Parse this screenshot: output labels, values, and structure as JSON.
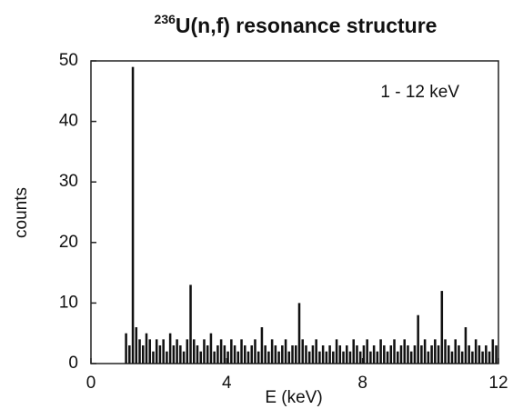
{
  "chart_data": {
    "type": "histogram",
    "title_superscript": "236",
    "title": "U(n,f)   resonance   structure",
    "annotation": "1 - 12 keV",
    "xlabel": "E (keV)",
    "ylabel": "counts",
    "color": "#111111",
    "xlim": [
      0,
      12
    ],
    "xticks": [
      0,
      4,
      8,
      12
    ],
    "ylim": [
      0,
      50
    ],
    "yticks": [
      0,
      10,
      20,
      30,
      40,
      50
    ],
    "bins": [
      1,
      1.1,
      1.2,
      1.3,
      1.4,
      1.5,
      1.6,
      1.7,
      1.8,
      1.9,
      2,
      2.1,
      2.2,
      2.3,
      2.4,
      2.5,
      2.6,
      2.7,
      2.8,
      2.9,
      3,
      3.1,
      3.2,
      3.3,
      3.4,
      3.5,
      3.6,
      3.7,
      3.8,
      3.9,
      4,
      4.1,
      4.2,
      4.3,
      4.4,
      4.5,
      4.6,
      4.7,
      4.8,
      4.9,
      5,
      5.1,
      5.2,
      5.3,
      5.4,
      5.5,
      5.6,
      5.7,
      5.8,
      5.9,
      6,
      6.1,
      6.2,
      6.3,
      6.4,
      6.5,
      6.6,
      6.7,
      6.8,
      6.9,
      7,
      7.1,
      7.2,
      7.3,
      7.4,
      7.5,
      7.6,
      7.7,
      7.8,
      7.9,
      8,
      8.1,
      8.2,
      8.3,
      8.4,
      8.5,
      8.6,
      8.7,
      8.8,
      8.9,
      9,
      9.1,
      9.2,
      9.3,
      9.4,
      9.5,
      9.6,
      9.7,
      9.8,
      9.9,
      10,
      10.1,
      10.2,
      10.3,
      10.4,
      10.5,
      10.6,
      10.7,
      10.8,
      10.9,
      11,
      11.1,
      11.2,
      11.3,
      11.4,
      11.5,
      11.6,
      11.7,
      11.8,
      11.9,
      12
    ],
    "values": [
      5,
      3,
      49,
      6,
      4,
      3,
      5,
      4,
      2,
      4,
      3,
      4,
      2,
      5,
      3,
      4,
      3,
      2,
      4,
      13,
      4,
      3,
      2,
      4,
      3,
      5,
      2,
      3,
      4,
      3,
      2,
      4,
      3,
      2,
      4,
      3,
      2,
      3,
      4,
      2,
      6,
      3,
      2,
      4,
      3,
      2,
      3,
      4,
      2,
      3,
      3,
      10,
      4,
      3,
      2,
      3,
      4,
      2,
      3,
      2,
      3,
      2,
      4,
      3,
      2,
      3,
      2,
      4,
      3,
      2,
      3,
      4,
      2,
      3,
      2,
      4,
      3,
      2,
      3,
      4,
      2,
      3,
      4,
      3,
      2,
      3,
      8,
      3,
      4,
      2,
      3,
      4,
      3,
      12,
      4,
      3,
      2,
      4,
      3,
      2,
      6,
      3,
      2,
      4,
      3,
      2,
      3,
      2,
      4,
      3
    ]
  }
}
